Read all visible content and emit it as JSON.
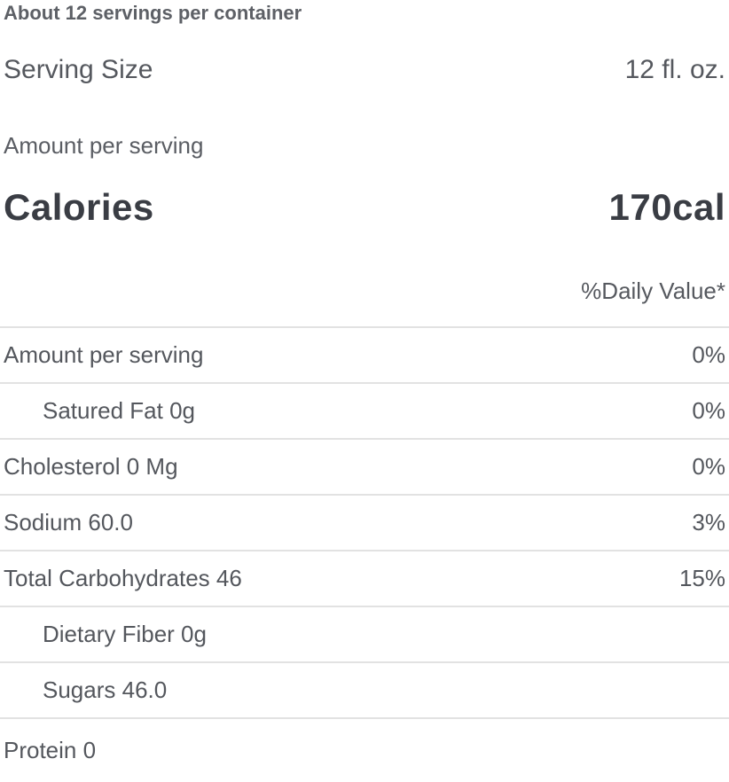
{
  "nutrition_label": {
    "servings_per_container": "About 12 servings per container",
    "serving_size_label": "Serving Size",
    "serving_size_value": "12 fl. oz.",
    "amount_per_serving_label": "Amount per serving",
    "calories_label": "Calories",
    "calories_value": "170cal",
    "daily_value_header": "%Daily Value*",
    "rows": [
      {
        "label": "Amount per serving",
        "value": "0%"
      },
      {
        "label": "Satured Fat 0g",
        "value": "0%"
      },
      {
        "label": "Cholesterol 0 Mg",
        "value": "0%"
      },
      {
        "label": "Sodium 60.0",
        "value": "3%"
      },
      {
        "label": "Total Carbohydrates 46",
        "value": "15%"
      },
      {
        "label": "Dietary Fiber 0g",
        "value": ""
      },
      {
        "label": "Sugars 46.0",
        "value": ""
      },
      {
        "label": "Protein 0",
        "value": ""
      }
    ],
    "colors": {
      "text_primary": "#54575d",
      "text_bold": "#3a3d44",
      "text_muted": "#5a5d63",
      "divider": "#e2e2e2",
      "background": "#ffffff"
    }
  }
}
